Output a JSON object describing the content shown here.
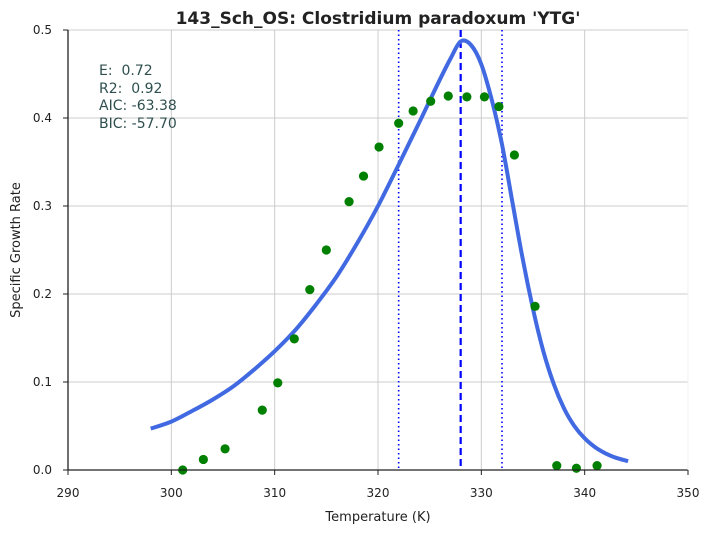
{
  "chart_data": {
    "type": "scatter",
    "title": "143_Sch_OS: Clostridium paradoxum 'YTG'",
    "xlabel": "Temperature (K)",
    "ylabel": "Specific Growth Rate",
    "xlim": [
      290,
      350
    ],
    "ylim": [
      0,
      0.5
    ],
    "xticks": [
      290,
      300,
      310,
      320,
      330,
      340,
      350
    ],
    "yticks": [
      0.0,
      0.1,
      0.2,
      0.3,
      0.4,
      0.5
    ],
    "grid": true,
    "stats_lines": [
      "E:  0.72",
      "R2:  0.92",
      "AIC: -63.38",
      "BIC: -57.70"
    ],
    "stats_color": "#2f4f4f",
    "observed": {
      "color": "#008000",
      "x": [
        301.1,
        303.1,
        305.2,
        308.8,
        310.3,
        311.9,
        313.4,
        315.0,
        317.2,
        318.6,
        320.1,
        322.0,
        323.4,
        325.1,
        326.8,
        328.6,
        330.3,
        331.7,
        333.2,
        335.2,
        337.3,
        339.2,
        341.2
      ],
      "y": [
        0.0,
        0.012,
        0.024,
        0.068,
        0.099,
        0.149,
        0.205,
        0.25,
        0.305,
        0.334,
        0.367,
        0.394,
        0.408,
        0.419,
        0.425,
        0.424,
        0.424,
        0.413,
        0.358,
        0.186,
        0.005,
        0.002,
        0.005
      ]
    },
    "fitted": {
      "color": "#4169e1",
      "x": [
        298,
        300,
        302,
        304,
        306,
        308,
        310,
        312,
        314,
        316,
        318,
        320,
        322,
        324,
        326,
        327,
        328,
        329,
        330,
        331,
        332,
        333,
        334,
        335,
        336,
        337,
        338,
        339,
        340,
        341,
        342,
        343,
        344.2
      ],
      "y": [
        0.047,
        0.055,
        0.067,
        0.08,
        0.095,
        0.114,
        0.135,
        0.159,
        0.188,
        0.22,
        0.258,
        0.3,
        0.347,
        0.395,
        0.444,
        0.467,
        0.487,
        0.483,
        0.461,
        0.421,
        0.37,
        0.305,
        0.24,
        0.183,
        0.135,
        0.098,
        0.07,
        0.05,
        0.036,
        0.026,
        0.019,
        0.014,
        0.01
      ]
    },
    "vertical_lines": [
      {
        "x": 322,
        "style": "dotted",
        "color": "#0000ff"
      },
      {
        "x": 328,
        "style": "dashed",
        "color": "#0000ff"
      },
      {
        "x": 332,
        "style": "dotted",
        "color": "#0000ff"
      }
    ]
  }
}
